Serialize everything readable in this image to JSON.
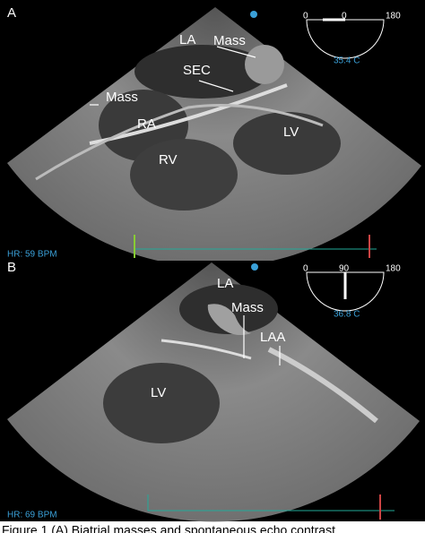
{
  "panels": [
    {
      "label": "A",
      "annotations": [
        "LA",
        "Mass",
        "SEC",
        "Mass",
        "RA",
        "LV",
        "RV"
      ],
      "angle_scale": [
        "0",
        "0",
        "180"
      ],
      "temperature": "35.4 C",
      "heart_rate": "HR: 59 BPM"
    },
    {
      "label": "B",
      "annotations": [
        "LA",
        "Mass",
        "LAA",
        "LV"
      ],
      "angle_scale": [
        "0",
        "90",
        "180"
      ],
      "temperature": "36.8 C",
      "heart_rate": "HR: 69 BPM"
    }
  ],
  "caption": "Figure 1 (A) Biatrial masses and spontaneous echo contrast"
}
